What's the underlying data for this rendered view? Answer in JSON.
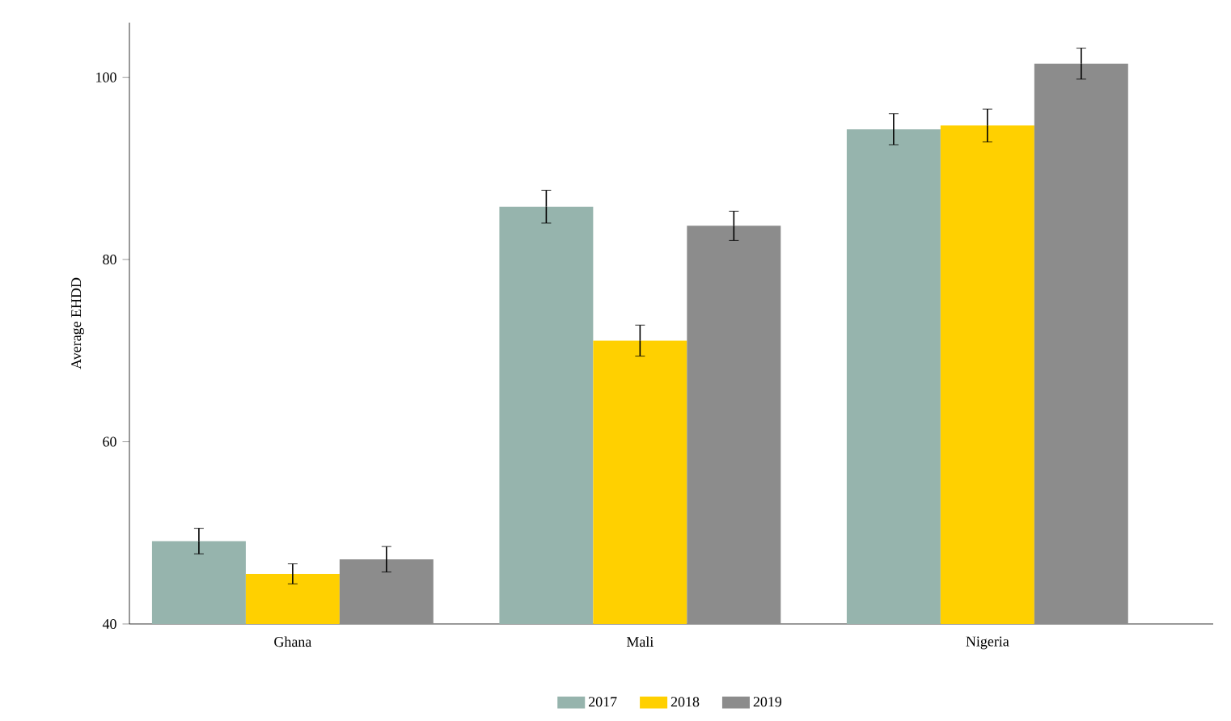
{
  "chart_data": {
    "type": "bar",
    "ylabel": "Average EHDD",
    "categories": [
      "Ghana",
      "Mali",
      "Nigeria"
    ],
    "series": [
      {
        "name": "2017",
        "color": "#96b4ad",
        "values": [
          49.1,
          85.8,
          94.3
        ],
        "errors": [
          1.4,
          1.8,
          1.7
        ]
      },
      {
        "name": "2018",
        "color": "#ffd000",
        "values": [
          45.5,
          71.1,
          94.7
        ],
        "errors": [
          1.1,
          1.7,
          1.8
        ]
      },
      {
        "name": "2019",
        "color": "#8c8c8c",
        "values": [
          47.1,
          83.7,
          101.5
        ],
        "errors": [
          1.4,
          1.6,
          1.7
        ]
      }
    ],
    "ylim": [
      40,
      106
    ],
    "yticks": [
      40,
      60,
      80,
      100
    ],
    "grid": false,
    "legend": "bottom"
  }
}
